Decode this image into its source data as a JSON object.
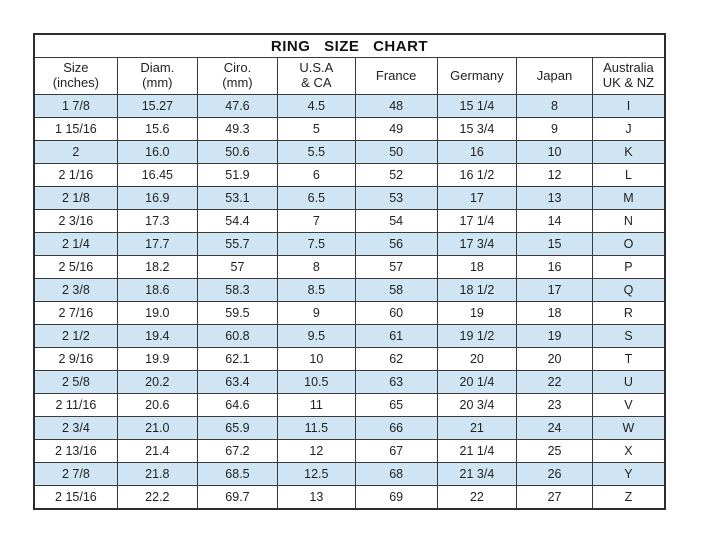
{
  "chart_data": {
    "type": "table",
    "title": "RING  SIZE  CHART",
    "columns": [
      {
        "name": "size-inches",
        "lines": [
          "Size",
          "(inches)"
        ]
      },
      {
        "name": "diameter-mm",
        "lines": [
          "Diam.",
          "(mm)"
        ]
      },
      {
        "name": "circumference-mm",
        "lines": [
          "Ciro.",
          "(mm)"
        ]
      },
      {
        "name": "usa-ca",
        "lines": [
          "U.S.A",
          "& CA"
        ]
      },
      {
        "name": "france",
        "lines": [
          "France"
        ]
      },
      {
        "name": "germany",
        "lines": [
          "Germany"
        ]
      },
      {
        "name": "japan",
        "lines": [
          "Japan"
        ]
      },
      {
        "name": "australia-uk-nz",
        "lines": [
          "Australia",
          "UK & NZ"
        ]
      }
    ],
    "rows": [
      [
        "1 7/8",
        "15.27",
        "47.6",
        "4.5",
        "48",
        "15 1/4",
        "8",
        "I"
      ],
      [
        "1 15/16",
        "15.6",
        "49.3",
        "5",
        "49",
        "15 3/4",
        "9",
        "J"
      ],
      [
        "2",
        "16.0",
        "50.6",
        "5.5",
        "50",
        "16",
        "10",
        "K"
      ],
      [
        "2 1/16",
        "16.45",
        "51.9",
        "6",
        "52",
        "16 1/2",
        "12",
        "L"
      ],
      [
        "2 1/8",
        "16.9",
        "53.1",
        "6.5",
        "53",
        "17",
        "13",
        "M"
      ],
      [
        "2 3/16",
        "17.3",
        "54.4",
        "7",
        "54",
        "17 1/4",
        "14",
        "N"
      ],
      [
        "2 1/4",
        "17.7",
        "55.7",
        "7.5",
        "56",
        "17 3/4",
        "15",
        "O"
      ],
      [
        "2 5/16",
        "18.2",
        "57",
        "8",
        "57",
        "18",
        "16",
        "P"
      ],
      [
        "2 3/8",
        "18.6",
        "58.3",
        "8.5",
        "58",
        "18 1/2",
        "17",
        "Q"
      ],
      [
        "2 7/16",
        "19.0",
        "59.5",
        "9",
        "60",
        "19",
        "18",
        "R"
      ],
      [
        "2 1/2",
        "19.4",
        "60.8",
        "9.5",
        "61",
        "19 1/2",
        "19",
        "S"
      ],
      [
        "2 9/16",
        "19.9",
        "62.1",
        "10",
        "62",
        "20",
        "20",
        "T"
      ],
      [
        "2 5/8",
        "20.2",
        "63.4",
        "10.5",
        "63",
        "20 1/4",
        "22",
        "U"
      ],
      [
        "2 11/16",
        "20.6",
        "64.6",
        "11",
        "65",
        "20 3/4",
        "23",
        "V"
      ],
      [
        "2 3/4",
        "21.0",
        "65.9",
        "11.5",
        "66",
        "21",
        "24",
        "W"
      ],
      [
        "2 13/16",
        "21.4",
        "67.2",
        "12",
        "67",
        "21 1/4",
        "25",
        "X"
      ],
      [
        "2 7/8",
        "21.8",
        "68.5",
        "12.5",
        "68",
        "21 3/4",
        "26",
        "Y"
      ],
      [
        "2 15/16",
        "22.2",
        "69.7",
        "13",
        "69",
        "22",
        "27",
        "Z"
      ]
    ],
    "layout": {
      "striped": true,
      "stripe_pattern": "odd-rows-highlighted",
      "grid": true
    }
  },
  "colors": {
    "row_highlight": "#cfe5f4",
    "row_plain": "#ffffff",
    "grid_line": "#3b3b3b",
    "outer_border": "#2e2e2e",
    "text": "#222222",
    "background": "#ffffff"
  }
}
